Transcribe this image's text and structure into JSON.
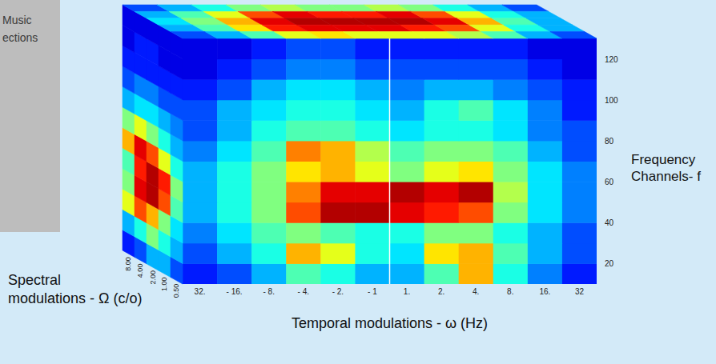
{
  "chart_data": {
    "type": "heatmap",
    "annotations": [
      "Music",
      "ections"
    ],
    "x_label": "Temporal modulations - ω (Hz)",
    "y_label": "Frequency Channels- f",
    "z_label": "Spectral modulations - Ω (c/o)",
    "categories": [
      "32.",
      "- 16.",
      "- 8.",
      "- 4.",
      "- 2.",
      "- 1",
      "1.",
      "2.",
      "4.",
      "8.",
      "16.",
      "32"
    ],
    "spectral_categories": [
      "8.00",
      "4.00",
      "2.00",
      "1.00",
      "0.50"
    ],
    "ylim": [
      10,
      130
    ],
    "yticks": [
      20,
      40,
      60,
      80,
      100,
      120
    ],
    "frequency_edges": [
      10,
      20,
      30,
      40,
      50,
      60,
      70,
      80,
      90,
      100,
      110,
      120,
      130
    ],
    "color_range": [
      0,
      1
    ],
    "grid": false,
    "front_cells": [
      [
        0.15,
        0.2,
        0.3,
        0.45,
        0.4,
        0.3,
        0.3,
        0.45,
        0.7,
        0.4,
        0.25,
        0.15
      ],
      [
        0.2,
        0.3,
        0.4,
        0.7,
        0.6,
        0.4,
        0.35,
        0.65,
        0.7,
        0.45,
        0.3,
        0.2
      ],
      [
        0.25,
        0.35,
        0.45,
        0.5,
        0.45,
        0.4,
        0.4,
        0.5,
        0.5,
        0.4,
        0.3,
        0.2
      ],
      [
        0.3,
        0.4,
        0.5,
        0.8,
        0.95,
        0.95,
        0.9,
        0.85,
        0.8,
        0.5,
        0.35,
        0.25
      ],
      [
        0.3,
        0.4,
        0.5,
        0.75,
        0.9,
        0.9,
        0.95,
        0.9,
        0.95,
        0.55,
        0.35,
        0.25
      ],
      [
        0.3,
        0.4,
        0.5,
        0.65,
        0.7,
        0.6,
        0.5,
        0.6,
        0.65,
        0.5,
        0.35,
        0.25
      ],
      [
        0.25,
        0.35,
        0.45,
        0.75,
        0.7,
        0.55,
        0.45,
        0.5,
        0.5,
        0.45,
        0.3,
        0.2
      ],
      [
        0.2,
        0.3,
        0.4,
        0.45,
        0.45,
        0.4,
        0.35,
        0.4,
        0.4,
        0.35,
        0.25,
        0.2
      ],
      [
        0.2,
        0.3,
        0.35,
        0.4,
        0.4,
        0.35,
        0.3,
        0.4,
        0.45,
        0.35,
        0.25,
        0.15
      ],
      [
        0.15,
        0.2,
        0.3,
        0.35,
        0.35,
        0.3,
        0.25,
        0.3,
        0.3,
        0.25,
        0.2,
        0.15
      ],
      [
        0.1,
        0.15,
        0.2,
        0.25,
        0.25,
        0.2,
        0.2,
        0.2,
        0.2,
        0.2,
        0.15,
        0.1
      ],
      [
        0.1,
        0.1,
        0.15,
        0.2,
        0.2,
        0.15,
        0.15,
        0.15,
        0.15,
        0.15,
        0.1,
        0.1
      ]
    ],
    "side_cells": [
      [
        0.15,
        0.2,
        0.3,
        0.3,
        0.2
      ],
      [
        0.3,
        0.4,
        0.5,
        0.4,
        0.3
      ],
      [
        0.6,
        0.8,
        0.7,
        0.5,
        0.35
      ],
      [
        0.5,
        0.9,
        0.95,
        0.8,
        0.45
      ],
      [
        0.45,
        0.85,
        0.95,
        0.85,
        0.5
      ],
      [
        0.7,
        0.9,
        0.8,
        0.6,
        0.4
      ],
      [
        0.5,
        0.6,
        0.5,
        0.4,
        0.3
      ],
      [
        0.3,
        0.35,
        0.35,
        0.3,
        0.25
      ],
      [
        0.2,
        0.25,
        0.25,
        0.2,
        0.2
      ],
      [
        0.15,
        0.15,
        0.15,
        0.15,
        0.15
      ],
      [
        0.1,
        0.15,
        0.15,
        0.1,
        0.1
      ],
      [
        0.1,
        0.1,
        0.1,
        0.1,
        0.1
      ]
    ],
    "top_cells": [
      [
        0.2,
        0.3,
        0.4,
        0.5,
        0.55,
        0.5,
        0.5,
        0.55,
        0.5,
        0.4,
        0.3,
        0.2
      ],
      [
        0.3,
        0.45,
        0.6,
        0.8,
        0.9,
        0.85,
        0.85,
        0.9,
        0.8,
        0.6,
        0.4,
        0.3
      ],
      [
        0.35,
        0.5,
        0.7,
        0.9,
        0.95,
        0.95,
        0.95,
        0.95,
        0.9,
        0.7,
        0.45,
        0.3
      ],
      [
        0.3,
        0.45,
        0.65,
        0.85,
        0.9,
        0.9,
        0.9,
        0.85,
        0.8,
        0.6,
        0.4,
        0.3
      ],
      [
        0.2,
        0.3,
        0.45,
        0.6,
        0.65,
        0.6,
        0.6,
        0.6,
        0.55,
        0.45,
        0.3,
        0.2
      ]
    ]
  }
}
